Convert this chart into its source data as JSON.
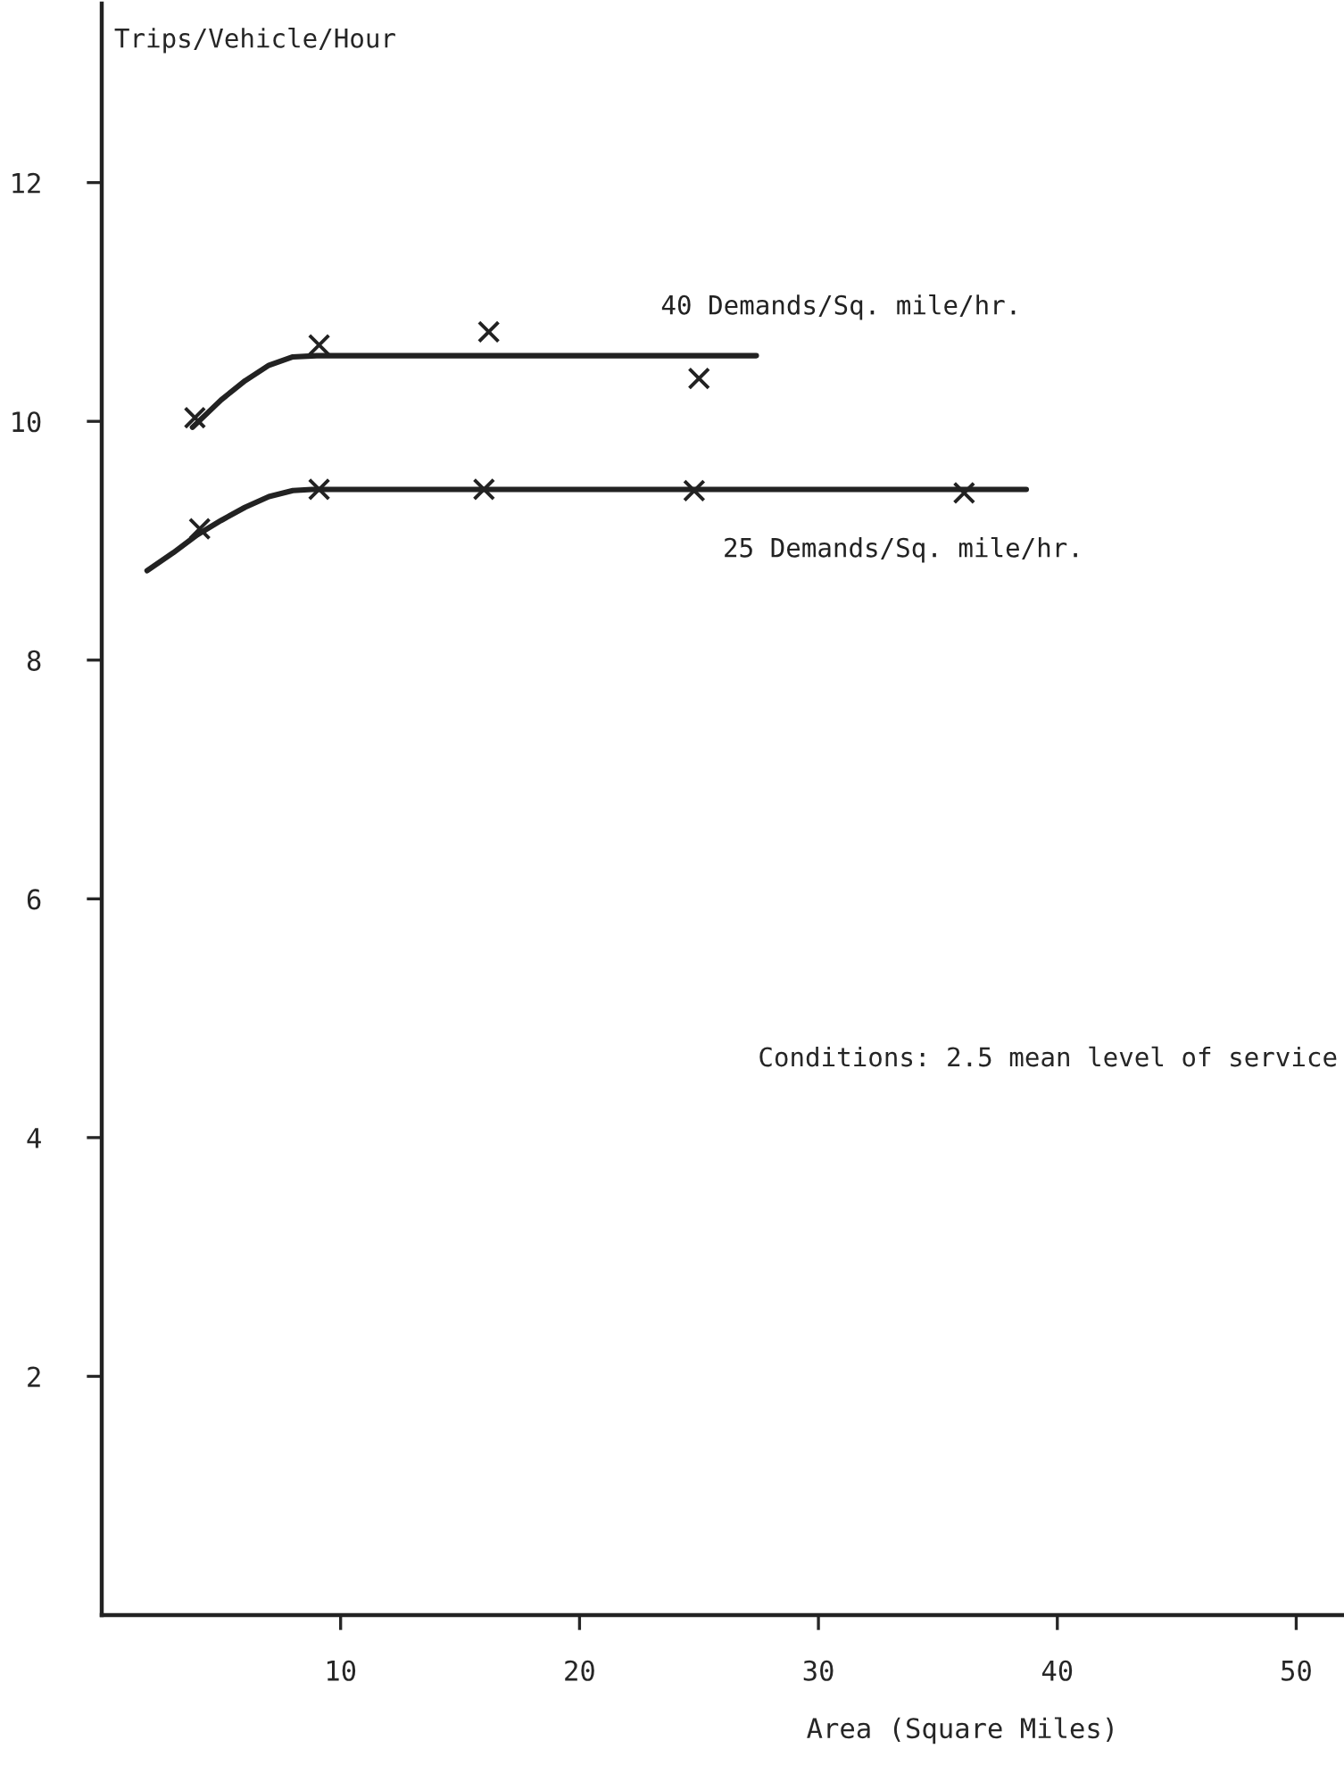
{
  "chart_data": {
    "type": "line",
    "xlabel": "Area (Square Miles)",
    "ylabel": "Trips/Vehicle/Hour",
    "xlim": [
      0,
      52
    ],
    "ylim": [
      0,
      13.5
    ],
    "xticks": [
      10,
      20,
      30,
      40,
      50
    ],
    "yticks": [
      2,
      4,
      6,
      8,
      10,
      12
    ],
    "grid": false,
    "legend": false,
    "annotations": [
      "Conditions: 2.5 mean level of service"
    ],
    "series": [
      {
        "name": "40 Demands/Sq. mile/hr.",
        "color": "#222222",
        "marker": "none",
        "x": [
          3.8,
          5,
          6,
          7,
          8,
          9,
          15,
          20,
          27.4
        ],
        "values": [
          9.95,
          10.18,
          10.34,
          10.47,
          10.54,
          10.55,
          10.55,
          10.55,
          10.55
        ]
      },
      {
        "name": "25 Demands/Sq. mile/hr.",
        "color": "#222222",
        "marker": "none",
        "x": [
          1.9,
          3,
          4,
          5,
          6,
          7,
          8,
          8.8,
          15,
          25,
          38.7
        ],
        "values": [
          8.75,
          8.9,
          9.05,
          9.17,
          9.28,
          9.37,
          9.42,
          9.43,
          9.43,
          9.43,
          9.43
        ]
      },
      {
        "type": "scatter",
        "color": "#222222",
        "marker": "cross",
        "x": [
          3.9,
          9.1,
          16.2,
          25.0
        ],
        "values": [
          10.03,
          10.64,
          10.75,
          10.36
        ]
      },
      {
        "type": "scatter",
        "color": "#222222",
        "marker": "cross",
        "x": [
          4.1,
          9.1,
          16.0,
          24.8,
          36.1
        ],
        "values": [
          9.1,
          9.43,
          9.43,
          9.42,
          9.4
        ]
      }
    ]
  }
}
